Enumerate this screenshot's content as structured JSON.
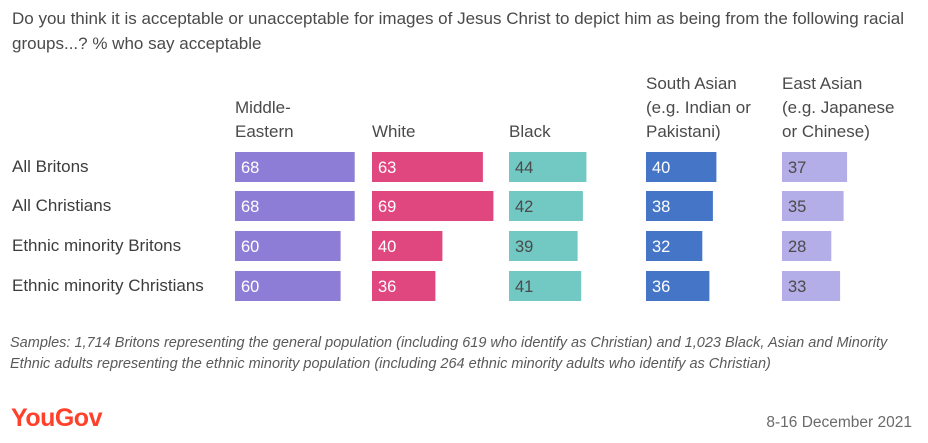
{
  "title": "Do you think it is acceptable or unacceptable for images of Jesus Christ to depict him as being from the following racial groups...? % who say acceptable",
  "note": "Samples: 1,714 Britons representing the general population (including 619 who identify as Christian) and 1,023 Black, Asian and Minority Ethnic adults representing the ethnic minority population (including 264 ethnic minority adults who identify as Christian)",
  "brand": "YouGov",
  "date": "8-16 December 2021",
  "chart_data": {
    "type": "bar",
    "title": "Do you think it is acceptable or unacceptable for images of Jesus Christ to depict him as being from the following racial groups...? % who say acceptable",
    "categories": [
      "All Britons",
      "All Christians",
      "Ethnic minority Britons",
      "Ethnic minority Christians"
    ],
    "series": [
      {
        "name": "Middle-Eastern",
        "header_lines": [
          "Middle-",
          "Eastern"
        ],
        "color": "#8e7dd6",
        "values": [
          68,
          68,
          60,
          60
        ]
      },
      {
        "name": "White",
        "header_lines": [
          "White"
        ],
        "color": "#e0477e",
        "values": [
          63,
          69,
          40,
          36
        ]
      },
      {
        "name": "Black",
        "header_lines": [
          "Black"
        ],
        "color": "#72c8c3",
        "values": [
          44,
          42,
          39,
          41
        ]
      },
      {
        "name": "South Asian (e.g. Indian or Pakistani)",
        "header_lines": [
          "South Asian",
          "(e.g. Indian or",
          "Pakistani)"
        ],
        "color": "#4575c6",
        "values": [
          40,
          38,
          32,
          36
        ]
      },
      {
        "name": "East Asian (e.g. Japanese or Chinese)",
        "header_lines": [
          "East Asian",
          "(e.g. Japanese",
          "or Chinese)"
        ],
        "color": "#b3aee8",
        "values": [
          37,
          35,
          28,
          33
        ]
      }
    ],
    "value_label_colors": [
      "#ffffff",
      "#ffffff",
      "#4a4a4a",
      "#ffffff",
      "#4a4a4a"
    ],
    "xlim": [
      0,
      100
    ],
    "grid": false,
    "legend": "column headers above bars"
  }
}
